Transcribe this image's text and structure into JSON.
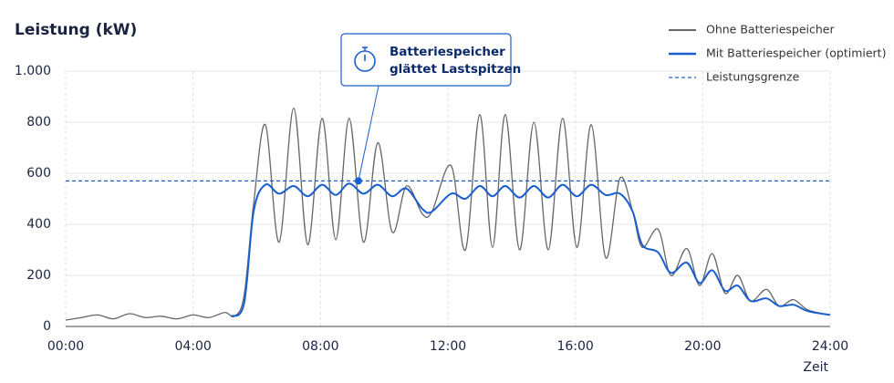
{
  "chart_data": {
    "type": "line",
    "title": "Leistung (kW)",
    "x_label": "Zeit",
    "xlim": [
      0,
      24
    ],
    "xticks": [
      {
        "value": 0,
        "label": "00:00"
      },
      {
        "value": 4,
        "label": "04:00"
      },
      {
        "value": 8,
        "label": "08:00"
      },
      {
        "value": 12,
        "label": "12:00"
      },
      {
        "value": 16,
        "label": "16:00"
      },
      {
        "value": 20,
        "label": "20:00"
      },
      {
        "value": 24,
        "label": "24:00"
      }
    ],
    "ylim": [
      0,
      1000
    ],
    "yticks": [
      0,
      200,
      400,
      600,
      800,
      {
        "value": 1000,
        "label": "1.000"
      }
    ],
    "grid": true,
    "legend": "top-right",
    "series": [
      {
        "name": "Ohne Batteriespeicher",
        "color": "#666666",
        "x": [
          0,
          0.5,
          1,
          1.5,
          2,
          2.5,
          3,
          3.5,
          4,
          4.5,
          5,
          5.3,
          5.6,
          5.9,
          6.27,
          6.7,
          7.16,
          7.6,
          8.05,
          8.48,
          8.9,
          9.35,
          9.8,
          10.25,
          10.7,
          11.2,
          11.5,
          12.1,
          12.55,
          13,
          13.4,
          13.8,
          14.25,
          14.7,
          15.15,
          15.6,
          16.05,
          16.5,
          16.95,
          17.4,
          17.8,
          18.1,
          18.6,
          19.0,
          19.5,
          19.9,
          20.3,
          20.7,
          21.1,
          21.5,
          22,
          22.4,
          22.85,
          23.3,
          24
        ],
        "values": [
          25,
          35,
          45,
          30,
          50,
          35,
          40,
          30,
          45,
          35,
          55,
          40,
          120,
          480,
          790,
          330,
          855,
          320,
          815,
          340,
          815,
          330,
          720,
          370,
          550,
          440,
          450,
          630,
          300,
          830,
          310,
          830,
          300,
          800,
          300,
          815,
          310,
          790,
          270,
          580,
          450,
          310,
          380,
          200,
          305,
          160,
          285,
          130,
          200,
          100,
          145,
          80,
          105,
          65,
          45
        ]
      },
      {
        "name": "Mit Batteriespeicher (optimiert)",
        "color": "#1a5fd0",
        "x": [
          5.2,
          5.6,
          5.9,
          6.27,
          6.7,
          7.16,
          7.6,
          8.05,
          8.48,
          8.9,
          9.35,
          9.8,
          10.25,
          10.7,
          11.2,
          11.5,
          12.1,
          12.55,
          13,
          13.4,
          13.8,
          14.25,
          14.7,
          15.15,
          15.6,
          16.05,
          16.5,
          16.95,
          17.4,
          17.8,
          18.1,
          18.6,
          19.0,
          19.5,
          19.9,
          20.3,
          20.7,
          21.1,
          21.5,
          22,
          22.4,
          22.85,
          23.3,
          24
        ],
        "values": [
          40,
          90,
          450,
          555,
          520,
          550,
          510,
          555,
          515,
          560,
          520,
          555,
          510,
          540,
          460,
          450,
          520,
          500,
          550,
          510,
          550,
          505,
          550,
          505,
          555,
          510,
          555,
          515,
          520,
          450,
          320,
          290,
          210,
          250,
          170,
          220,
          140,
          160,
          100,
          110,
          80,
          85,
          60,
          45
        ]
      }
    ],
    "limit": {
      "name": "Leistungsgrenze",
      "value": 570,
      "color": "#1a5fd0"
    },
    "annotation": {
      "text_lines": [
        "Batteriespeicher",
        "glättet Lastspitzen"
      ],
      "x": 9.19,
      "y": 570
    }
  }
}
